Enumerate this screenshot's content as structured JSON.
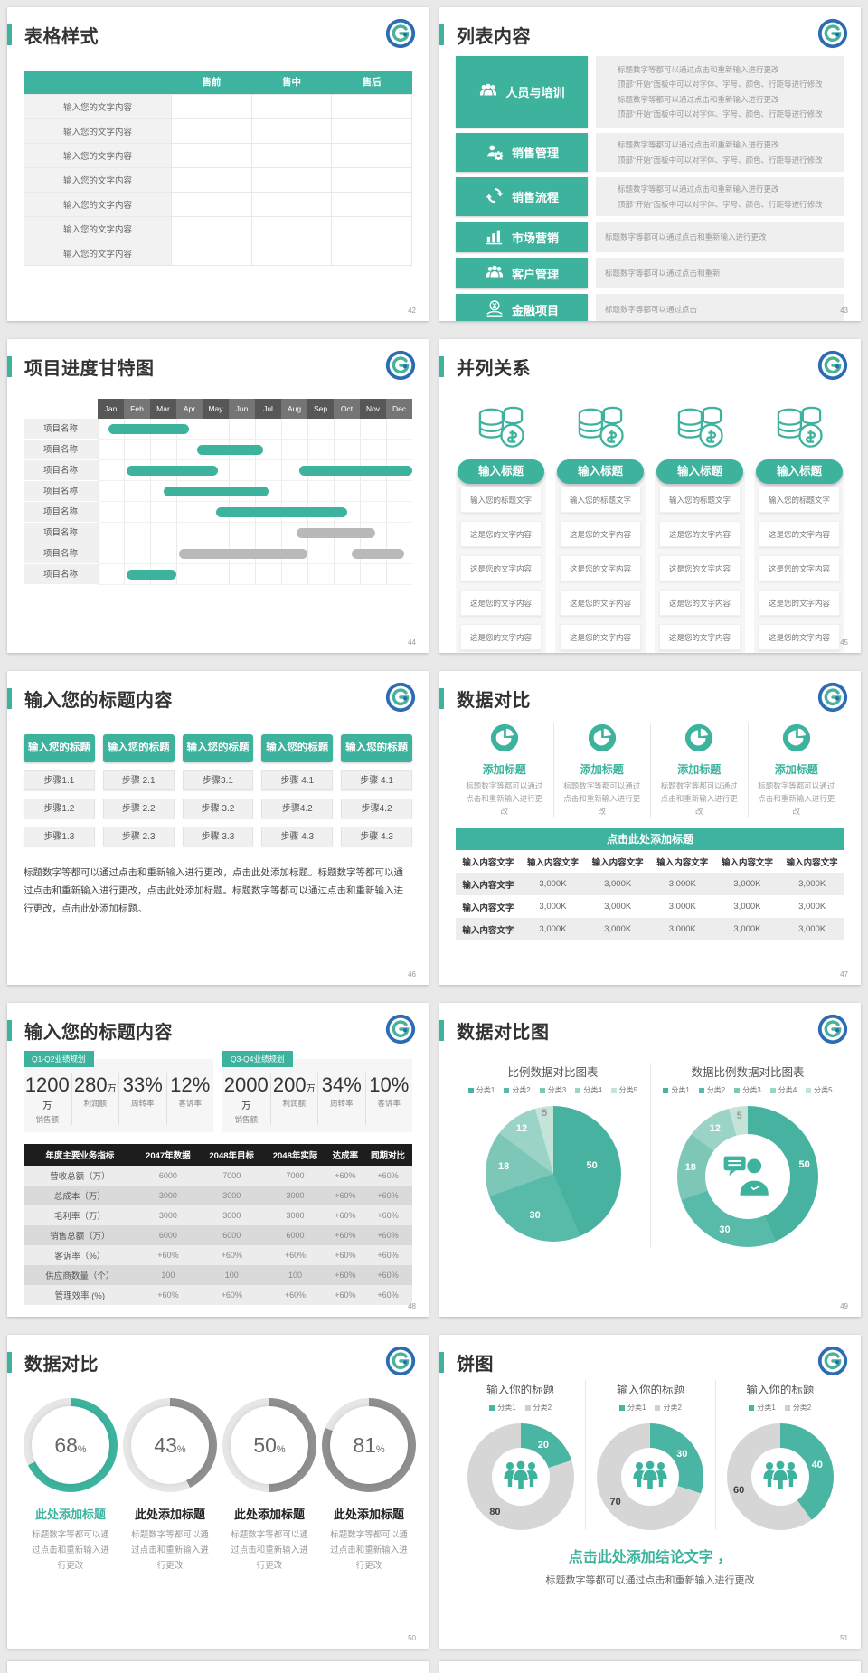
{
  "accent_color": "#3DB39E",
  "gray_bar_color": "#b9b9b9",
  "pie_palette": [
    "#48B2A0",
    "#58BBA9",
    "#7CC7B7",
    "#9CD3C7",
    "#C4E4DA"
  ],
  "slides": {
    "s42": {
      "title": "表格样式",
      "page": "42",
      "table": {
        "headers": [
          "",
          "售前",
          "售中",
          "售后"
        ],
        "rows": [
          "输入您的文字内容",
          "输入您的文字内容",
          "输入您的文字内容",
          "输入您的文字内容",
          "输入您的文字内容",
          "输入您的文字内容",
          "输入您的文字内容"
        ]
      }
    },
    "s43": {
      "title": "列表内容",
      "page": "43",
      "items": [
        {
          "label": "人员与培训",
          "icon": "people-icon",
          "texts": [
            "标题数字等都可以通过点击和重新输入进行更改",
            "顶部“开始”面板中可以对字体、字号、颜色、行距等进行修改",
            "标题数字等都可以通过点击和重新输入进行更改",
            "顶部“开始”面板中可以对字体、字号、颜色、行距等进行修改"
          ]
        },
        {
          "label": "销售管理",
          "icon": "person-gear-icon",
          "texts": [
            "标题数字等都可以通过点击和重新输入进行更改",
            "顶部“开始”面板中可以对字体、字号、颜色、行距等进行修改"
          ]
        },
        {
          "label": "销售流程",
          "icon": "cycle-arrows-icon",
          "texts": [
            "标题数字等都可以通过点击和重新输入进行更改",
            "顶部“开始”面板中可以对字体、字号、颜色、行距等进行修改"
          ]
        },
        {
          "label": "市场营销",
          "icon": "bar-chart-icon",
          "texts": [
            "标题数字等都可以通过点击和重新输入进行更改"
          ]
        },
        {
          "label": "客户管理",
          "icon": "customers-icon",
          "texts": [
            "标题数字等都可以通过点击和重新"
          ]
        },
        {
          "label": "金融项目",
          "icon": "finance-icon",
          "texts": [
            "标题数字等都可以通过点击"
          ]
        }
      ]
    },
    "s44": {
      "title": "项目进度甘特图",
      "page": "44",
      "row_label": "项目名称"
    },
    "s45": {
      "title": "并列关系",
      "page": "45",
      "pill": "输入标题",
      "cards": [
        "输入您的标题文字",
        "这是您的文字内容",
        "这是您的文字内容",
        "这是您的文字内容",
        "这是您的文字内容"
      ]
    },
    "s46": {
      "title": "输入您的标题内容",
      "page": "46",
      "header": "输入您的标题",
      "cols": [
        [
          "步骤1.1",
          "步骤1.2",
          "步骤1.3"
        ],
        [
          "步骤 2.1",
          "步骤 2.2",
          "步骤 2.3"
        ],
        [
          "步骤3.1",
          "步骤 3.2",
          "步骤 3.3"
        ],
        [
          "步骤 4.1",
          "步骤4.2",
          "步骤 4.3"
        ],
        [
          "步骤 4.1",
          "步骤4.2",
          "步骤 4.3"
        ]
      ],
      "paragraph": "标题数字等都可以通过点击和重新输入进行更改，点击此处添加标题。标题数字等都可以通过点击和重新输入进行更改，点击此处添加标题。标题数字等都可以通过点击和重新输入进行更改，点击此处添加标题。"
    },
    "s47": {
      "title": "数据对比",
      "page": "47",
      "features": [
        {
          "title": "添加标题",
          "desc": "标题数字等都可以通过点击和重新输入进行更改"
        },
        {
          "title": "添加标题",
          "desc": "标题数字等都可以通过点击和重新输入进行更改"
        },
        {
          "title": "添加标题",
          "desc": "标题数字等都可以通过点击和重新输入进行更改"
        },
        {
          "title": "添加标题",
          "desc": "标题数字等都可以通过点击和重新输入进行更改"
        }
      ],
      "band": "点击此处添加标题",
      "table": {
        "headers": [
          "输入内容文字",
          "输入内容文字",
          "输入内容文字",
          "输入内容文字",
          "输入内容文字",
          "输入内容文字"
        ],
        "rows": [
          [
            "输入内容文字",
            "3,000K",
            "3,000K",
            "3,000K",
            "3,000K",
            "3,000K"
          ],
          [
            "输入内容文字",
            "3,000K",
            "3,000K",
            "3,000K",
            "3,000K",
            "3,000K"
          ],
          [
            "输入内容文字",
            "3,000K",
            "3,000K",
            "3,000K",
            "3,000K",
            "3,000K"
          ]
        ]
      }
    },
    "s48": {
      "title": "输入您的标题内容",
      "page": "48",
      "groups": [
        {
          "tag": "Q1-Q2业绩规划",
          "metrics": [
            {
              "value": "1200",
              "unit": "万",
              "label": "销售额"
            },
            {
              "value": "280",
              "unit": "万",
              "label": "利润额"
            },
            {
              "value": "33%",
              "unit": "",
              "label": "周转率"
            },
            {
              "value": "12%",
              "unit": "",
              "label": "客诉率"
            }
          ]
        },
        {
          "tag": "Q3-Q4业绩规划",
          "metrics": [
            {
              "value": "2000",
              "unit": "万",
              "label": "销售额"
            },
            {
              "value": "200",
              "unit": "万",
              "label": "利润额"
            },
            {
              "value": "34%",
              "unit": "",
              "label": "周转率"
            },
            {
              "value": "10%",
              "unit": "",
              "label": "客诉率"
            }
          ]
        }
      ],
      "table": {
        "headers": [
          "年度主要业务指标",
          "2047年数据",
          "2048年目标",
          "2048年实际",
          "达成率",
          "同期对比"
        ],
        "rows": [
          [
            "营收总额（万）",
            "6000",
            "7000",
            "7000",
            "+60%",
            "+60%"
          ],
          [
            "总成本（万）",
            "3000",
            "3000",
            "3000",
            "+60%",
            "+60%"
          ],
          [
            "毛利率（万）",
            "3000",
            "3000",
            "3000",
            "+60%",
            "+60%"
          ],
          [
            "销售总额（万）",
            "6000",
            "6000",
            "6000",
            "+60%",
            "+60%"
          ],
          [
            "客诉率（%）",
            "+60%",
            "+60%",
            "+60%",
            "+60%",
            "+60%"
          ],
          [
            "供应商数量（个）",
            "100",
            "100",
            "100",
            "+60%",
            "+60%"
          ],
          [
            "管理效率 (%)",
            "+60%",
            "+60%",
            "+60%",
            "+60%",
            "+60%"
          ]
        ]
      }
    },
    "s49": {
      "title": "数据对比图",
      "page": "49",
      "charts": [
        {
          "title": "比例数据对比图表"
        },
        {
          "title": "数据比例数据对比图表"
        }
      ],
      "legend": [
        "分类1",
        "分类2",
        "分类3",
        "分类4",
        "分类5"
      ]
    },
    "s50": {
      "title": "数据对比",
      "page": "50",
      "gauges": [
        {
          "value": "68",
          "unit": "%",
          "heading": "此处添加标题",
          "desc": "标题数字等都可以通过点击和重新输入进行更改"
        },
        {
          "value": "43",
          "unit": "%",
          "heading": "此处添加标题",
          "desc": "标题数字等都可以通过点击和重新输入进行更改"
        },
        {
          "value": "50",
          "unit": "%",
          "heading": "此处添加标题",
          "desc": "标题数字等都可以通过点击和重新输入进行更改"
        },
        {
          "value": "81",
          "unit": "%",
          "heading": "此处添加标题",
          "desc": "标题数字等都可以通过点击和重新输入进行更改"
        }
      ]
    },
    "s51": {
      "title": "饼图",
      "page": "51",
      "charts": [
        {
          "title": "输入你的标题"
        },
        {
          "title": "输入你的标题"
        },
        {
          "title": "输入你的标题"
        }
      ],
      "legend": [
        "分类1",
        "分类2"
      ],
      "conclusion": "点击此处添加结论文字 ，",
      "note": "标题数字等都可以通过点击和重新输入进行更改"
    }
  },
  "chart_data": [
    {
      "type": "gantt",
      "slide": "44",
      "months": [
        "Jan",
        "Feb",
        "Mar",
        "Apr",
        "May",
        "Jun",
        "Jul",
        "Aug",
        "Sep",
        "Oct",
        "Nov",
        "Dec"
      ],
      "rows": [
        {
          "label": "项目名称",
          "bars": [
            {
              "start": 0.4,
              "end": 3.5,
              "color": "teal"
            }
          ]
        },
        {
          "label": "项目名称",
          "bars": [
            {
              "start": 3.8,
              "end": 6.3,
              "color": "teal"
            }
          ]
        },
        {
          "label": "项目名称",
          "bars": [
            {
              "start": 1.1,
              "end": 4.6,
              "color": "teal"
            },
            {
              "start": 7.7,
              "end": 12,
              "color": "teal"
            }
          ]
        },
        {
          "label": "项目名称",
          "bars": [
            {
              "start": 2.5,
              "end": 6.5,
              "color": "teal"
            }
          ]
        },
        {
          "label": "项目名称",
          "bars": [
            {
              "start": 4.5,
              "end": 9.5,
              "color": "teal"
            }
          ]
        },
        {
          "label": "项目名称",
          "bars": [
            {
              "start": 7.6,
              "end": 10.6,
              "color": "gray"
            }
          ]
        },
        {
          "label": "项目名称",
          "bars": [
            {
              "start": 3.1,
              "end": 8.0,
              "color": "gray"
            },
            {
              "start": 9.7,
              "end": 11.7,
              "color": "gray"
            }
          ]
        },
        {
          "label": "项目名称",
          "bars": [
            {
              "start": 1.1,
              "end": 3.0,
              "color": "teal"
            }
          ]
        }
      ]
    },
    {
      "type": "pie",
      "slide": "49",
      "title": "比例数据对比图表",
      "legend": [
        "分类1",
        "分类2",
        "分类3",
        "分类4",
        "分类5"
      ],
      "values": [
        50,
        30,
        18,
        12,
        5
      ]
    },
    {
      "type": "donut",
      "slide": "49",
      "title": "数据比例数据对比图表",
      "legend": [
        "分类1",
        "分类2",
        "分类3",
        "分类4",
        "分类5"
      ],
      "values": [
        50,
        30,
        18,
        12,
        5
      ]
    },
    {
      "type": "gauge",
      "slide": "50",
      "values": [
        68,
        43,
        50,
        81
      ],
      "max": 100
    },
    {
      "type": "donut",
      "slide": "51",
      "legend": [
        "分类1",
        "分类2"
      ],
      "charts": [
        {
          "title": "输入你的标题",
          "values": [
            20,
            80
          ]
        },
        {
          "title": "输入你的标题",
          "values": [
            30,
            70
          ]
        },
        {
          "title": "输入你的标题",
          "values": [
            40,
            60
          ]
        }
      ]
    }
  ]
}
